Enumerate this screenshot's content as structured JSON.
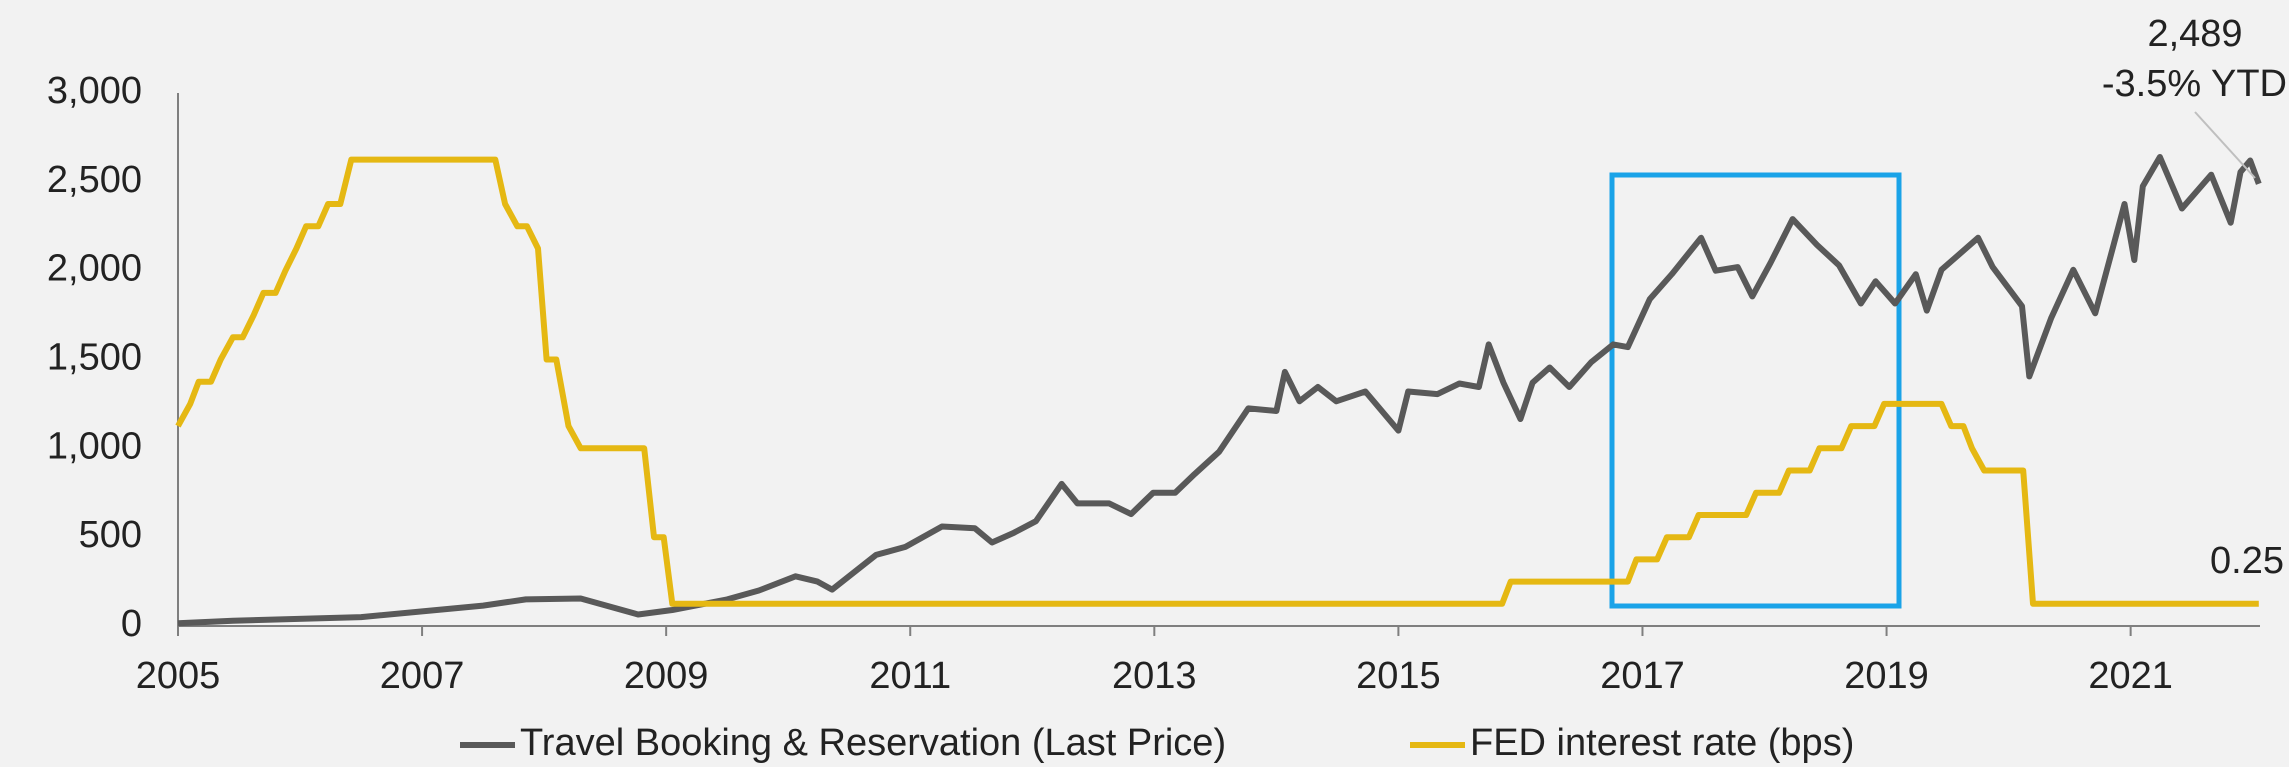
{
  "chart_data": {
    "type": "line",
    "xlim": [
      2005,
      2022.06
    ],
    "xticks": [
      2005,
      2007,
      2009,
      2011,
      2013,
      2015,
      2017,
      2019,
      2021
    ],
    "ylim": [
      0,
      3000
    ],
    "yticks": [
      0,
      500,
      {
        "value": 1000,
        "label": "1,000"
      },
      {
        "value": 1500,
        "label": "1,500"
      },
      {
        "value": 2000,
        "label": "2,000"
      },
      {
        "value": 2500,
        "label": "2,500"
      },
      {
        "value": 3000,
        "label": "3,000"
      }
    ],
    "y2lim": [
      0,
      6
    ],
    "legend": "bottom",
    "annotations": [
      "2,489",
      "-3.5% YTD",
      "0.25"
    ],
    "series": [
      {
        "name": "Travel Booking & Reservation (Last Price)",
        "color": "#595959",
        "x": [
          2005,
          2005.45,
          2006.5,
          2007.5,
          2007.85,
          2008.3,
          2008.77,
          2009.05,
          2009.5,
          2009.76,
          2010.06,
          2010.24,
          2010.36,
          2010.72,
          2010.96,
          2011.26,
          2011.53,
          2011.67,
          2011.85,
          2012.03,
          2012.24,
          2012.37,
          2012.63,
          2012.81,
          2012.99,
          2013.17,
          2013.33,
          2013.53,
          2013.77,
          2014.0,
          2014.07,
          2014.19,
          2014.34,
          2014.49,
          2014.73,
          2015.0,
          2015.08,
          2015.32,
          2015.5,
          2015.66,
          2015.74,
          2015.86,
          2016.0,
          2016.1,
          2016.24,
          2016.4,
          2016.58,
          2016.76,
          2016.88,
          2017.06,
          2017.24,
          2017.48,
          2017.6,
          2017.78,
          2017.9,
          2018.05,
          2018.23,
          2018.43,
          2018.61,
          2018.79,
          2018.91,
          2019.07,
          2019.24,
          2019.33,
          2019.45,
          2019.75,
          2019.87,
          2020.11,
          2020.17,
          2020.35,
          2020.53,
          2020.71,
          2020.86,
          2020.95,
          2021.03,
          2021.1,
          2021.24,
          2021.42,
          2021.66,
          2021.82,
          2021.9,
          2021.98,
          2022.05
        ],
        "values": [
          15,
          30,
          50,
          115,
          150,
          155,
          65,
          90,
          150,
          200,
          280,
          250,
          205,
          400,
          445,
          560,
          550,
          470,
          525,
          590,
          800,
          690,
          690,
          630,
          750,
          750,
          855,
          980,
          1225,
          1210,
          1430,
          1265,
          1345,
          1265,
          1320,
          1100,
          1320,
          1305,
          1365,
          1345,
          1585,
          1370,
          1165,
          1370,
          1455,
          1345,
          1485,
          1585,
          1570,
          1840,
          1980,
          2185,
          2000,
          2020,
          1855,
          2045,
          2290,
          2145,
          2030,
          1815,
          1940,
          1815,
          1980,
          1775,
          2005,
          2185,
          2020,
          1800,
          1405,
          1735,
          2005,
          1760,
          2145,
          2375,
          2060,
          2475,
          2640,
          2350,
          2540,
          2270,
          2555,
          2620,
          2489
        ]
      },
      {
        "name": "FED interest rate (bps)",
        "color": "#e5b813",
        "axis": "y2",
        "x": [
          2005,
          2005.1,
          2005.17,
          2005.27,
          2005.35,
          2005.45,
          2005.53,
          2005.62,
          2005.7,
          2005.8,
          2005.88,
          2005.97,
          2006.05,
          2006.15,
          2006.23,
          2006.33,
          2006.42,
          2007.6,
          2007.68,
          2007.78,
          2007.86,
          2007.95,
          2008.02,
          2008.1,
          2008.2,
          2008.3,
          2008.82,
          2008.9,
          2008.98,
          2009.05,
          2015.85,
          2015.92,
          2016.88,
          2016.95,
          2017.12,
          2017.2,
          2017.38,
          2017.46,
          2017.85,
          2017.93,
          2018.12,
          2018.2,
          2018.37,
          2018.45,
          2018.63,
          2018.71,
          2018.9,
          2018.98,
          2019.45,
          2019.53,
          2019.63,
          2019.7,
          2019.8,
          2019.88,
          2020.12,
          2020.2,
          2022.05
        ],
        "values": [
          2.25,
          2.5,
          2.75,
          2.75,
          3.0,
          3.25,
          3.25,
          3.5,
          3.75,
          3.75,
          4.0,
          4.25,
          4.5,
          4.5,
          4.75,
          4.75,
          5.25,
          5.25,
          4.75,
          4.5,
          4.5,
          4.25,
          3.0,
          3.0,
          2.25,
          2.0,
          2.0,
          1.0,
          1.0,
          0.25,
          0.25,
          0.5,
          0.5,
          0.75,
          0.75,
          1.0,
          1.0,
          1.25,
          1.25,
          1.5,
          1.5,
          1.75,
          1.75,
          2.0,
          2.0,
          2.25,
          2.25,
          2.5,
          2.5,
          2.25,
          2.25,
          2.0,
          1.75,
          1.75,
          1.75,
          0.25,
          0.25
        ]
      }
    ]
  }
}
